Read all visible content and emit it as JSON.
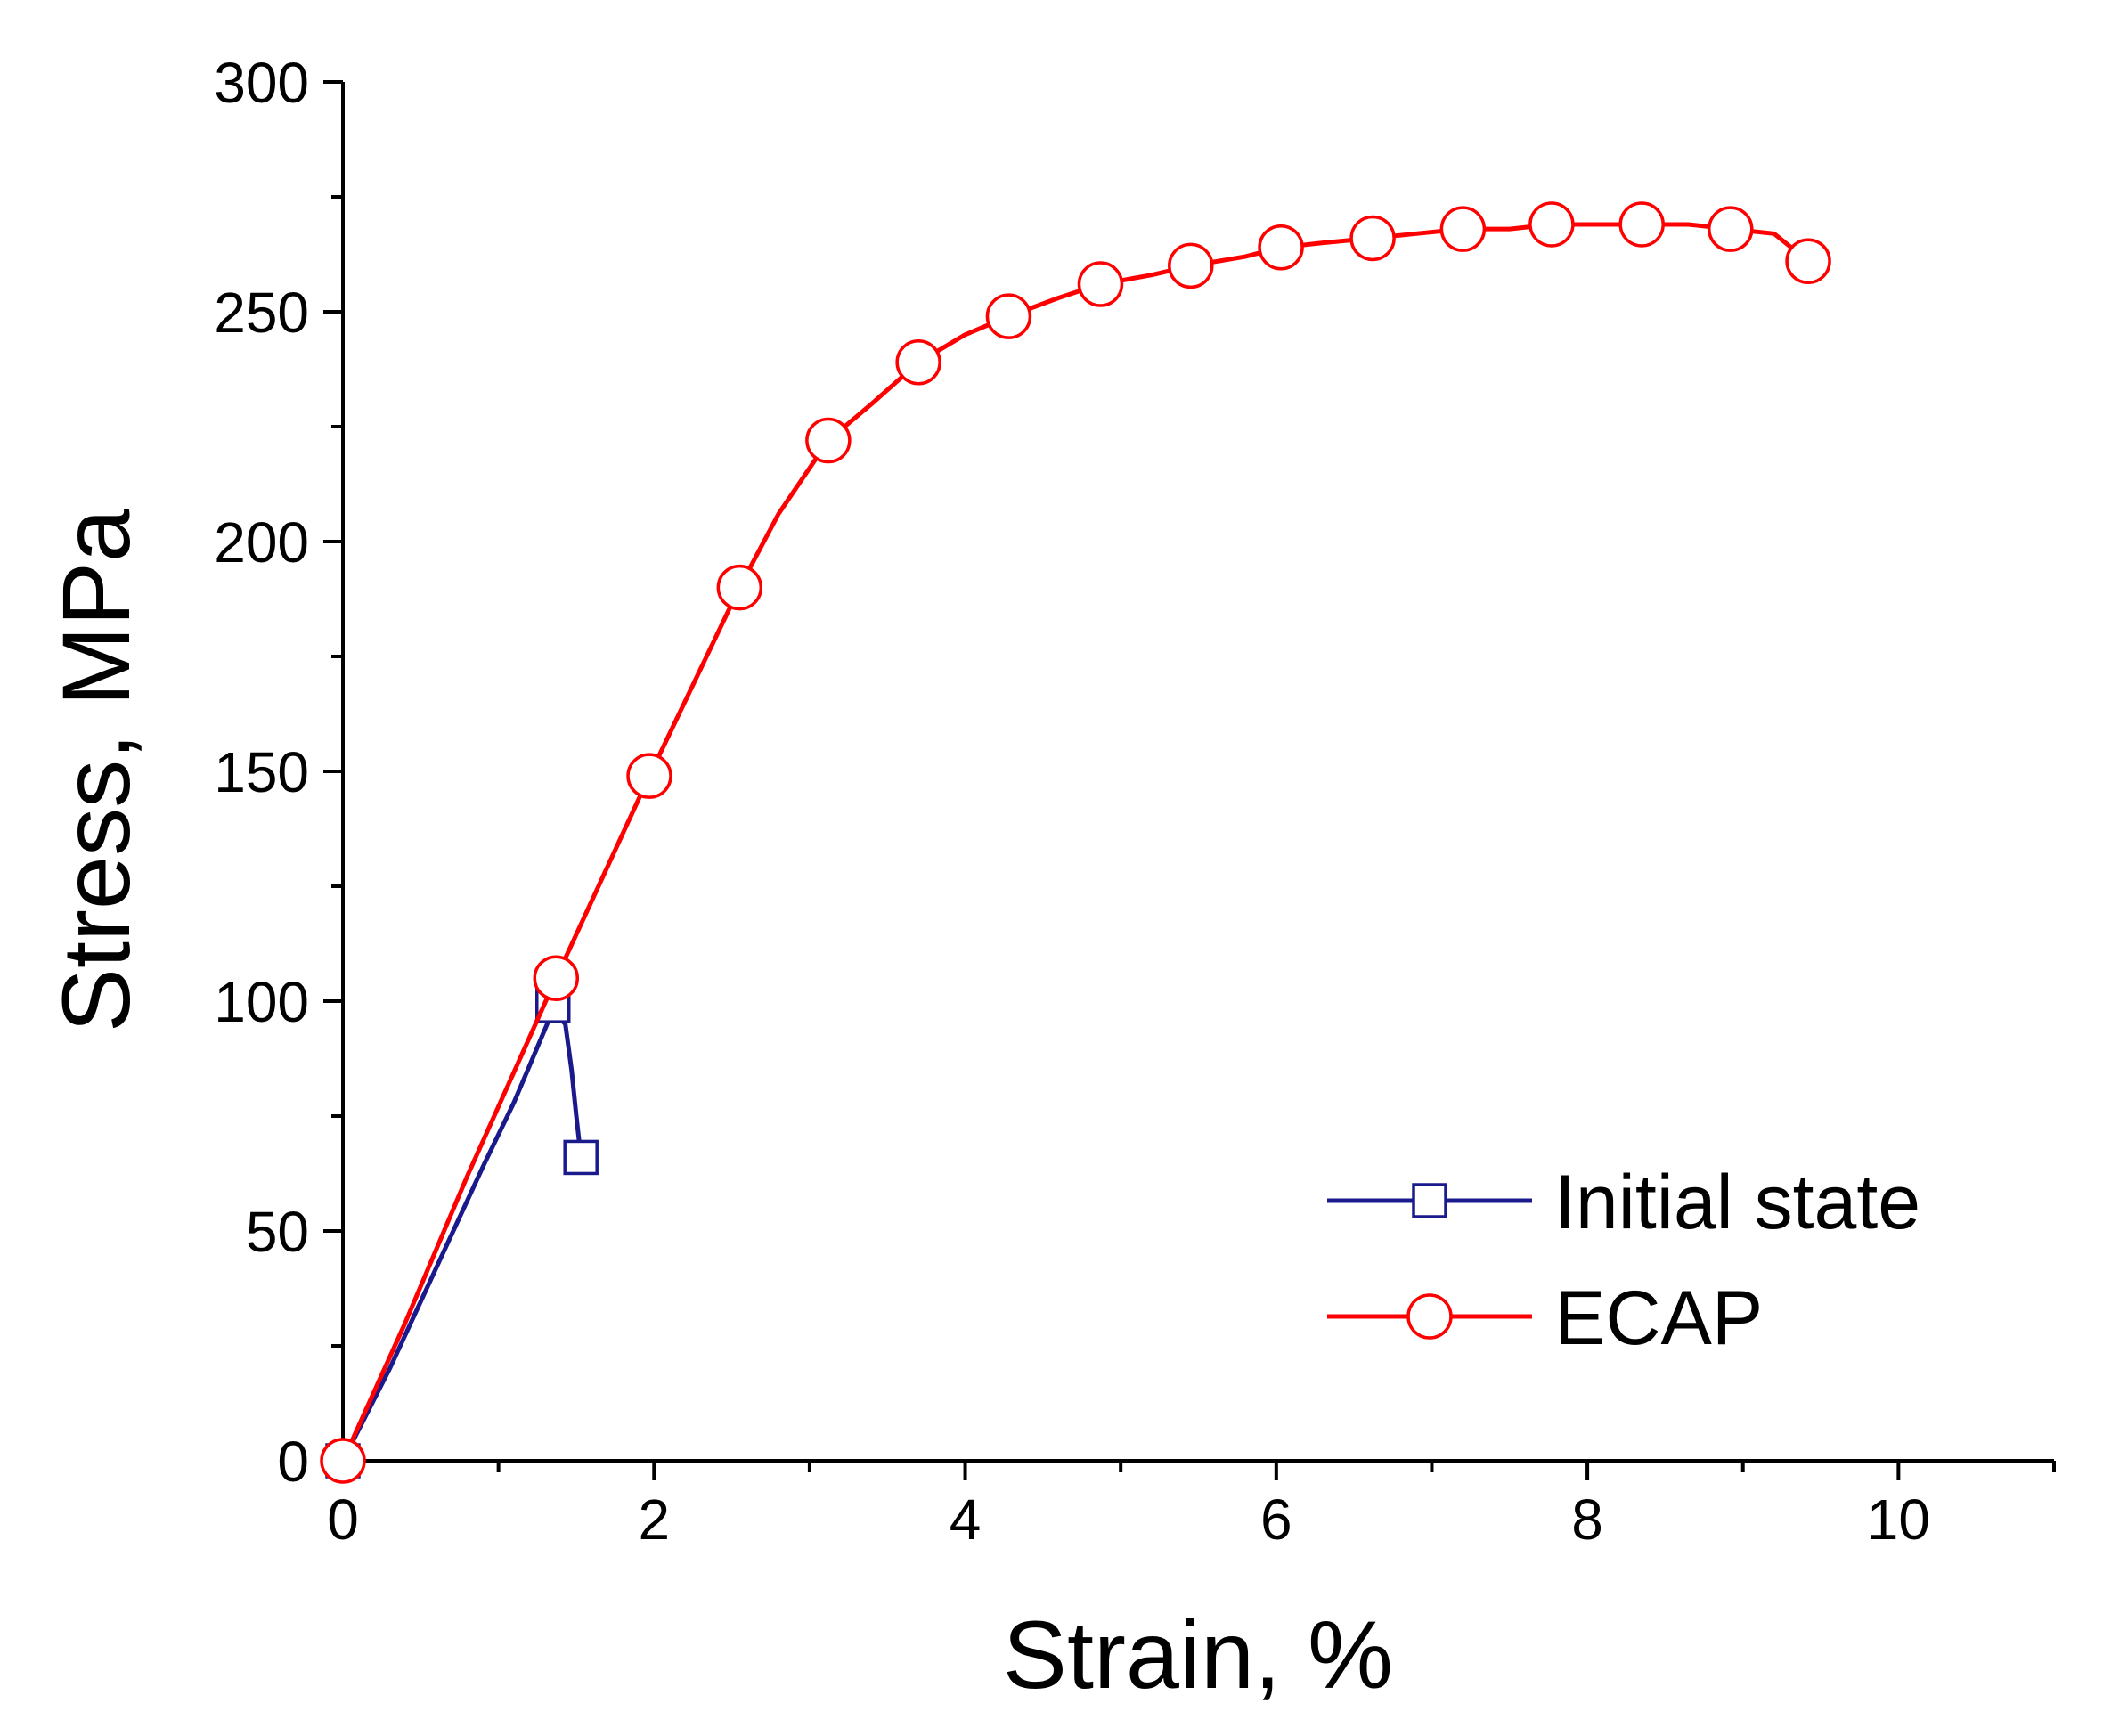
{
  "chart_data": {
    "type": "line",
    "title": "",
    "xlabel": "Strain, %",
    "ylabel": "Stress, MPa",
    "xlim": [
      0,
      11
    ],
    "ylim": [
      0,
      300
    ],
    "x_ticks": [
      0,
      2,
      4,
      6,
      8,
      10
    ],
    "x_minor_step": 1,
    "y_ticks": [
      0,
      50,
      100,
      150,
      200,
      250,
      300
    ],
    "y_minor_step": 25,
    "grid": false,
    "legend_position": "bottom-right",
    "series": [
      {
        "name": "Initial state",
        "color": "#1a1a8c",
        "marker": "square",
        "x": [
          0.0,
          0.3,
          0.6,
          0.9,
          1.1,
          1.35,
          1.43,
          1.47,
          1.5,
          1.53
        ],
        "y": [
          0,
          20,
          42,
          64,
          78,
          98,
          95,
          85,
          75,
          66
        ],
        "marker_x": [
          0.0,
          1.35,
          1.53
        ],
        "marker_y": [
          0,
          99,
          66
        ]
      },
      {
        "name": "ECAP",
        "color": "#ff0000",
        "marker": "circle",
        "x": [
          0.0,
          0.4,
          0.8,
          1.37,
          1.97,
          2.55,
          2.8,
          3.12,
          3.4,
          3.7,
          4.0,
          4.28,
          4.6,
          4.87,
          5.2,
          5.45,
          5.8,
          6.03,
          6.3,
          6.62,
          6.9,
          7.2,
          7.5,
          7.77,
          8.05,
          8.35,
          8.65,
          8.92,
          9.2,
          9.42
        ],
        "y": [
          0,
          30,
          62,
          105,
          149,
          190,
          206,
          222,
          230,
          239,
          245,
          249,
          253,
          256,
          258,
          260,
          262,
          264,
          265,
          266,
          267,
          268,
          268,
          269,
          269,
          269,
          269,
          268,
          267,
          261
        ],
        "marker_x": [
          0.0,
          1.37,
          1.97,
          2.55,
          3.12,
          3.7,
          4.28,
          4.87,
          5.45,
          6.03,
          6.62,
          7.2,
          7.77,
          8.35,
          8.92,
          9.42
        ],
        "marker_y": [
          0,
          105,
          149,
          190,
          222,
          239,
          249,
          256,
          260,
          264,
          266,
          268,
          269,
          269,
          268,
          261
        ]
      }
    ]
  }
}
